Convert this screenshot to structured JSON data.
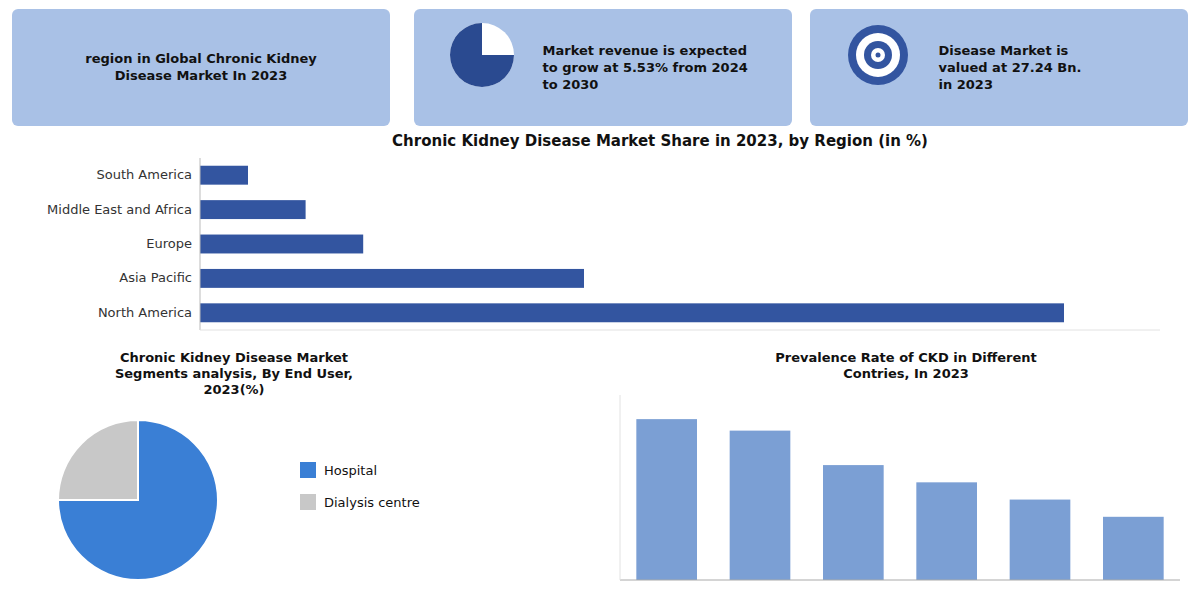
{
  "chart_data": [
    {
      "type": "bar",
      "orientation": "horizontal",
      "title": "Chronic Kidney Disease  Market Share in 2023, by Region (in %)",
      "annotations": [
        "region in Global Chronic Kidney\nDisease Market In 2023",
        "Market revenue is expected\nto grow at 5.53% from 2024\nto 2030",
        "Disease Market is\nvalued at 27.24 Bn.\nin 2023"
      ],
      "categories": [
        "South America",
        "Middle East and Africa",
        "Europe",
        "Asia Pacific",
        "North America"
      ],
      "values": [
        5,
        11,
        17,
        40,
        90
      ],
      "color": "#3355a0",
      "xlim": [
        0,
        100
      ],
      "tick_labels": "y",
      "grid": false
    },
    {
      "type": "pie",
      "title": "Chronic Kidney Disease  Market\nSegments analysis, By End User,\n2023(%)",
      "categories": [
        "Hospital",
        "Dialysis centre"
      ],
      "values": [
        75,
        25
      ],
      "colors": [
        "#3a7fd5",
        "#c8c8c8"
      ],
      "legend": "right"
    },
    {
      "type": "bar",
      "title": "Prevalence Rate of CKD in Different\nContries, In 2023",
      "categories": [
        null,
        null,
        null,
        null,
        null,
        null
      ],
      "values": [
        14,
        13,
        10,
        8.5,
        7,
        5.5
      ],
      "color": "#7b9fd4",
      "ylim": [
        0,
        16.1
      ],
      "tick_labels": false,
      "grid": false
    }
  ]
}
